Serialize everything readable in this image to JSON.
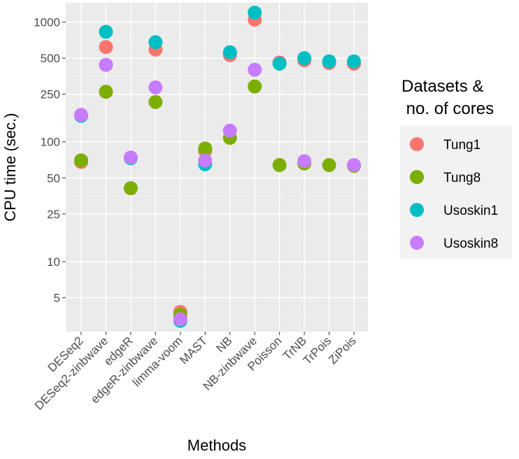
{
  "chart_data": {
    "type": "scatter",
    "xlabel": "Methods",
    "ylabel": "CPU time (sec.)",
    "y_scale": "log",
    "ylim": [
      2.6,
      1450
    ],
    "y_ticks": [
      5,
      10,
      25,
      50,
      100,
      250,
      500,
      1000
    ],
    "y_tick_labels": [
      "5",
      "10",
      "25",
      "50",
      "100",
      "250",
      "500",
      "1000"
    ],
    "categories": [
      "DESeq2",
      "DESeq2-zinbwave",
      "edgeR",
      "edgeR-zinbwave",
      "limma-voom",
      "MAST",
      "NB",
      "NB-zinbwave",
      "Poisson",
      "TrNB",
      "TrPois",
      "ZiPois"
    ],
    "legend": {
      "title_lines": [
        "Datasets &",
        " no. of cores"
      ],
      "position": "right"
    },
    "grid": true,
    "series": [
      {
        "name": "Tung1",
        "color": "#F8766D",
        "values": [
          68,
          620,
          null,
          590,
          3.8,
          84,
          530,
          1050,
          460,
          480,
          455,
          450
        ]
      },
      {
        "name": "Tung8",
        "color": "#7CAE00",
        "values": [
          70,
          262,
          41,
          215,
          3.6,
          88,
          108,
          290,
          64,
          66,
          64,
          63
        ]
      },
      {
        "name": "Usoskin1",
        "color": "#00BFC4",
        "values": [
          165,
          830,
          73,
          680,
          3.2,
          65,
          560,
          1200,
          450,
          500,
          470,
          470
        ]
      },
      {
        "name": "Usoskin8",
        "color": "#C77CFF",
        "values": [
          168,
          440,
          74,
          285,
          3.3,
          70,
          124,
          400,
          null,
          69,
          null,
          64
        ]
      }
    ]
  }
}
